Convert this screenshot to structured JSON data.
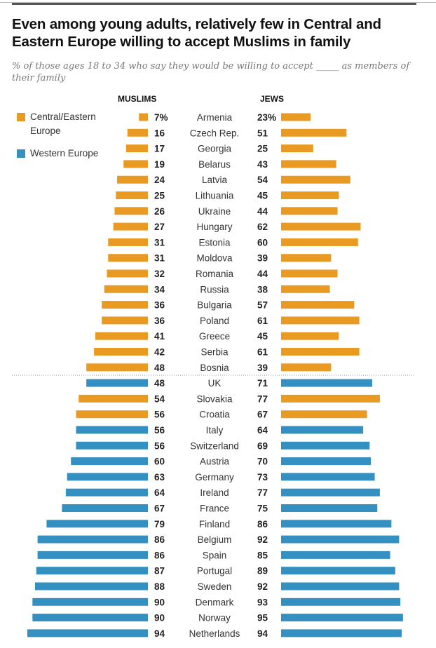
{
  "chart_data": {
    "type": "bar",
    "title": "Even among young adults, relatively few in Central and Eastern Europe willing to accept Muslims in family",
    "subtitle": "% of those ages 18 to 34 who say they would be willing to accept _____ as members of their family",
    "categories": [
      "Armenia",
      "Czech Rep.",
      "Georgia",
      "Belarus",
      "Latvia",
      "Lithuania",
      "Ukraine",
      "Hungary",
      "Estonia",
      "Moldova",
      "Romania",
      "Russia",
      "Bulgaria",
      "Poland",
      "Greece",
      "Serbia",
      "Bosnia",
      "UK",
      "Slovakia",
      "Croatia",
      "Italy",
      "Switzerland",
      "Austria",
      "Germany",
      "Ireland",
      "France",
      "Finland",
      "Belgium",
      "Spain",
      "Portugal",
      "Sweden",
      "Denmark",
      "Norway",
      "Netherlands"
    ],
    "region": [
      "ce",
      "ce",
      "ce",
      "ce",
      "ce",
      "ce",
      "ce",
      "ce",
      "ce",
      "ce",
      "ce",
      "ce",
      "ce",
      "ce",
      "ce",
      "ce",
      "ce",
      "we",
      "ce",
      "ce",
      "we",
      "we",
      "we",
      "we",
      "we",
      "we",
      "we",
      "we",
      "we",
      "we",
      "we",
      "we",
      "we",
      "we"
    ],
    "series": [
      {
        "name": "MUSLIMS",
        "values": [
          7,
          16,
          17,
          19,
          24,
          25,
          26,
          27,
          31,
          31,
          32,
          34,
          36,
          36,
          41,
          42,
          48,
          48,
          54,
          56,
          56,
          56,
          60,
          63,
          64,
          67,
          79,
          86,
          86,
          87,
          88,
          90,
          90,
          94
        ]
      },
      {
        "name": "JEWS",
        "values": [
          23,
          51,
          25,
          43,
          54,
          45,
          44,
          62,
          60,
          39,
          44,
          38,
          57,
          61,
          45,
          61,
          39,
          71,
          77,
          67,
          64,
          69,
          70,
          73,
          77,
          75,
          86,
          92,
          85,
          89,
          92,
          93,
          95,
          94
        ]
      }
    ],
    "first_value_suffix": "%",
    "legend": [
      {
        "key": "ce",
        "label": "Central/Eastern Europe",
        "color": "#E99A23"
      },
      {
        "key": "we",
        "label": "Western Europe",
        "color": "#3590C2"
      }
    ],
    "divider_after": "Bosnia",
    "xlim": [
      0,
      100
    ]
  }
}
